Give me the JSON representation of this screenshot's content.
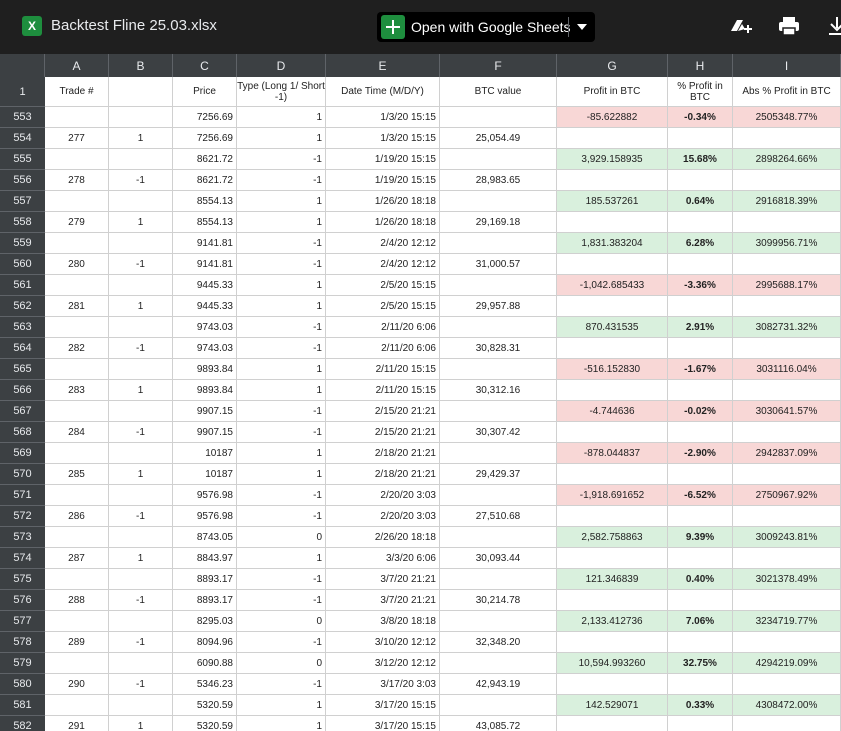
{
  "file": {
    "title": "Backtest Fline 25.03.xlsx",
    "icon_letter": "X"
  },
  "toolbar": {
    "open_label": "Open with Google Sheets",
    "icons": [
      "add-to-drive-icon",
      "print-icon",
      "download-icon"
    ]
  },
  "columns": [
    "A",
    "B",
    "C",
    "D",
    "E",
    "F",
    "G",
    "H",
    "I"
  ],
  "header_row": {
    "num": "1",
    "cells": [
      "Trade #",
      "",
      "Price",
      "Type (Long 1/ Short -1)",
      "Date Time (M/D/Y)",
      "BTC value",
      "Profit in BTC",
      "% Profit in BTC",
      "Abs % Profit in BTC"
    ]
  },
  "rows": [
    {
      "num": "553",
      "a": "",
      "b": "",
      "c": "7256.69",
      "d": "1",
      "e": "1/3/20 15:15",
      "f": "",
      "g": "-85.622882",
      "h": "-0.34%",
      "i": "2505348.77%",
      "tone": "red"
    },
    {
      "num": "554",
      "a": "277",
      "b": "1",
      "c": "7256.69",
      "d": "1",
      "e": "1/3/20 15:15",
      "f": "25,054.49",
      "g": "",
      "h": "",
      "i": "",
      "tone": ""
    },
    {
      "num": "555",
      "a": "",
      "b": "",
      "c": "8621.72",
      "d": "-1",
      "e": "1/19/20 15:15",
      "f": "",
      "g": "3,929.158935",
      "h": "15.68%",
      "i": "2898264.66%",
      "tone": "green"
    },
    {
      "num": "556",
      "a": "278",
      "b": "-1",
      "c": "8621.72",
      "d": "-1",
      "e": "1/19/20 15:15",
      "f": "28,983.65",
      "g": "",
      "h": "",
      "i": "",
      "tone": ""
    },
    {
      "num": "557",
      "a": "",
      "b": "",
      "c": "8554.13",
      "d": "1",
      "e": "1/26/20 18:18",
      "f": "",
      "g": "185.537261",
      "h": "0.64%",
      "i": "2916818.39%",
      "tone": "green"
    },
    {
      "num": "558",
      "a": "279",
      "b": "1",
      "c": "8554.13",
      "d": "1",
      "e": "1/26/20 18:18",
      "f": "29,169.18",
      "g": "",
      "h": "",
      "i": "",
      "tone": ""
    },
    {
      "num": "559",
      "a": "",
      "b": "",
      "c": "9141.81",
      "d": "-1",
      "e": "2/4/20 12:12",
      "f": "",
      "g": "1,831.383204",
      "h": "6.28%",
      "i": "3099956.71%",
      "tone": "green"
    },
    {
      "num": "560",
      "a": "280",
      "b": "-1",
      "c": "9141.81",
      "d": "-1",
      "e": "2/4/20 12:12",
      "f": "31,000.57",
      "g": "",
      "h": "",
      "i": "",
      "tone": ""
    },
    {
      "num": "561",
      "a": "",
      "b": "",
      "c": "9445.33",
      "d": "1",
      "e": "2/5/20 15:15",
      "f": "",
      "g": "-1,042.685433",
      "h": "-3.36%",
      "i": "2995688.17%",
      "tone": "red"
    },
    {
      "num": "562",
      "a": "281",
      "b": "1",
      "c": "9445.33",
      "d": "1",
      "e": "2/5/20 15:15",
      "f": "29,957.88",
      "g": "",
      "h": "",
      "i": "",
      "tone": ""
    },
    {
      "num": "563",
      "a": "",
      "b": "",
      "c": "9743.03",
      "d": "-1",
      "e": "2/11/20 6:06",
      "f": "",
      "g": "870.431535",
      "h": "2.91%",
      "i": "3082731.32%",
      "tone": "green"
    },
    {
      "num": "564",
      "a": "282",
      "b": "-1",
      "c": "9743.03",
      "d": "-1",
      "e": "2/11/20 6:06",
      "f": "30,828.31",
      "g": "",
      "h": "",
      "i": "",
      "tone": ""
    },
    {
      "num": "565",
      "a": "",
      "b": "",
      "c": "9893.84",
      "d": "1",
      "e": "2/11/20 15:15",
      "f": "",
      "g": "-516.152830",
      "h": "-1.67%",
      "i": "3031116.04%",
      "tone": "red"
    },
    {
      "num": "566",
      "a": "283",
      "b": "1",
      "c": "9893.84",
      "d": "1",
      "e": "2/11/20 15:15",
      "f": "30,312.16",
      "g": "",
      "h": "",
      "i": "",
      "tone": ""
    },
    {
      "num": "567",
      "a": "",
      "b": "",
      "c": "9907.15",
      "d": "-1",
      "e": "2/15/20 21:21",
      "f": "",
      "g": "-4.744636",
      "h": "-0.02%",
      "i": "3030641.57%",
      "tone": "red"
    },
    {
      "num": "568",
      "a": "284",
      "b": "-1",
      "c": "9907.15",
      "d": "-1",
      "e": "2/15/20 21:21",
      "f": "30,307.42",
      "g": "",
      "h": "",
      "i": "",
      "tone": ""
    },
    {
      "num": "569",
      "a": "",
      "b": "",
      "c": "10187",
      "d": "1",
      "e": "2/18/20 21:21",
      "f": "",
      "g": "-878.044837",
      "h": "-2.90%",
      "i": "2942837.09%",
      "tone": "red"
    },
    {
      "num": "570",
      "a": "285",
      "b": "1",
      "c": "10187",
      "d": "1",
      "e": "2/18/20 21:21",
      "f": "29,429.37",
      "g": "",
      "h": "",
      "i": "",
      "tone": ""
    },
    {
      "num": "571",
      "a": "",
      "b": "",
      "c": "9576.98",
      "d": "-1",
      "e": "2/20/20 3:03",
      "f": "",
      "g": "-1,918.691652",
      "h": "-6.52%",
      "i": "2750967.92%",
      "tone": "red"
    },
    {
      "num": "572",
      "a": "286",
      "b": "-1",
      "c": "9576.98",
      "d": "-1",
      "e": "2/20/20 3:03",
      "f": "27,510.68",
      "g": "",
      "h": "",
      "i": "",
      "tone": ""
    },
    {
      "num": "573",
      "a": "",
      "b": "",
      "c": "8743.05",
      "d": "0",
      "e": "2/26/20 18:18",
      "f": "",
      "g": "2,582.758863",
      "h": "9.39%",
      "i": "3009243.81%",
      "tone": "green"
    },
    {
      "num": "574",
      "a": "287",
      "b": "1",
      "c": "8843.97",
      "d": "1",
      "e": "3/3/20 6:06",
      "f": "30,093.44",
      "g": "",
      "h": "",
      "i": "",
      "tone": ""
    },
    {
      "num": "575",
      "a": "",
      "b": "",
      "c": "8893.17",
      "d": "-1",
      "e": "3/7/20 21:21",
      "f": "",
      "g": "121.346839",
      "h": "0.40%",
      "i": "3021378.49%",
      "tone": "green"
    },
    {
      "num": "576",
      "a": "288",
      "b": "-1",
      "c": "8893.17",
      "d": "-1",
      "e": "3/7/20 21:21",
      "f": "30,214.78",
      "g": "",
      "h": "",
      "i": "",
      "tone": ""
    },
    {
      "num": "577",
      "a": "",
      "b": "",
      "c": "8295.03",
      "d": "0",
      "e": "3/8/20 18:18",
      "f": "",
      "g": "2,133.412736",
      "h": "7.06%",
      "i": "3234719.77%",
      "tone": "green"
    },
    {
      "num": "578",
      "a": "289",
      "b": "-1",
      "c": "8094.96",
      "d": "-1",
      "e": "3/10/20 12:12",
      "f": "32,348.20",
      "g": "",
      "h": "",
      "i": "",
      "tone": ""
    },
    {
      "num": "579",
      "a": "",
      "b": "",
      "c": "6090.88",
      "d": "0",
      "e": "3/12/20 12:12",
      "f": "",
      "g": "10,594.993260",
      "h": "32.75%",
      "i": "4294219.09%",
      "tone": "green"
    },
    {
      "num": "580",
      "a": "290",
      "b": "-1",
      "c": "5346.23",
      "d": "-1",
      "e": "3/17/20 3:03",
      "f": "42,943.19",
      "g": "",
      "h": "",
      "i": "",
      "tone": ""
    },
    {
      "num": "581",
      "a": "",
      "b": "",
      "c": "5320.59",
      "d": "1",
      "e": "3/17/20 15:15",
      "f": "",
      "g": "142.529071",
      "h": "0.33%",
      "i": "4308472.00%",
      "tone": "green"
    },
    {
      "num": "582",
      "a": "291",
      "b": "1",
      "c": "5320.59",
      "d": "1",
      "e": "3/17/20 15:15",
      "f": "43,085.72",
      "g": "",
      "h": "",
      "i": "",
      "tone": ""
    }
  ],
  "colors": {
    "positive": "#d9f0dd",
    "negative": "#f8d7d6"
  }
}
